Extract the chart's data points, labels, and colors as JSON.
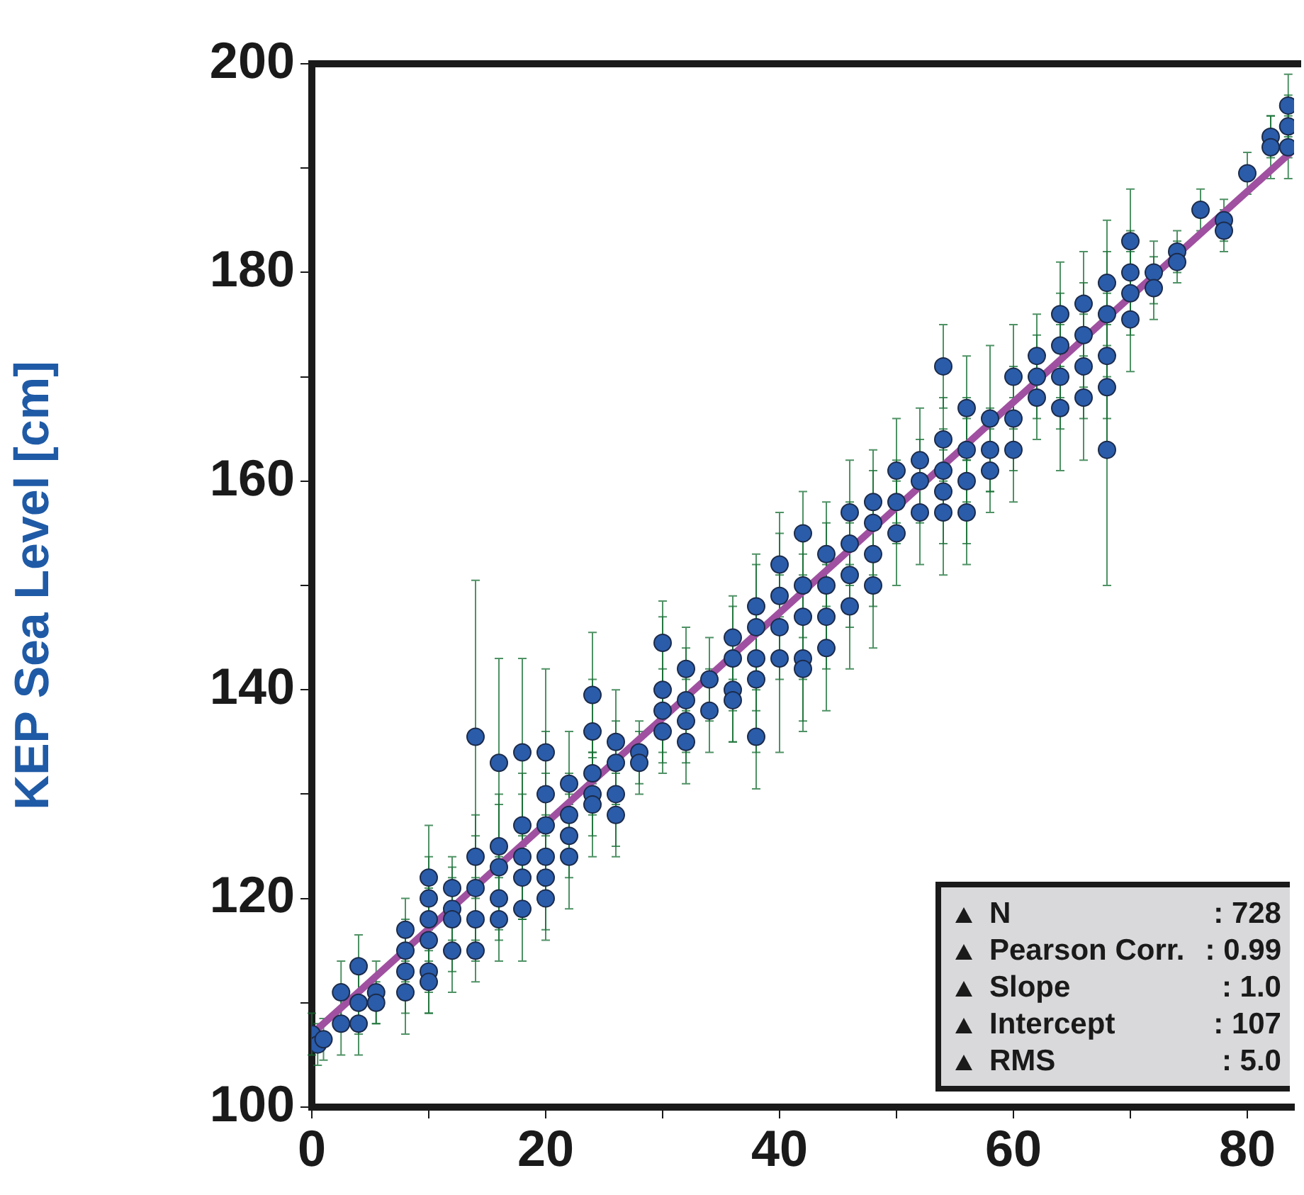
{
  "chart_data": {
    "type": "scatter",
    "ylabel": "KEP Sea Level [cm]",
    "xlim": [
      0,
      84
    ],
    "ylim": [
      100,
      200
    ],
    "xticks": [
      0,
      {
        "value": 10,
        "label": null
      },
      20,
      {
        "value": 30,
        "label": null
      },
      40,
      {
        "value": 50,
        "label": null
      },
      60,
      {
        "value": 70,
        "label": null
      },
      80
    ],
    "yticks": [
      100,
      {
        "value": 110,
        "label": null
      },
      120,
      {
        "value": 130,
        "label": null
      },
      140,
      {
        "value": 150,
        "label": null
      },
      160,
      {
        "value": 170,
        "label": null
      },
      180,
      {
        "value": 190,
        "label": null
      },
      200
    ],
    "grid": false,
    "legend": false,
    "marker": "circle",
    "annotations": [
      "N : 728",
      "Pearson Corr. : 0.99",
      "Slope : 1.0",
      "Intercept : 107",
      "RMS : 5.0"
    ],
    "series": [
      {
        "type": "line",
        "marker": "none",
        "color": "#a050a0",
        "x": [
          0,
          84
        ],
        "values": [
          107,
          191.8
        ]
      },
      {
        "color": "#2a5caa",
        "x": [
          0,
          0.5,
          1,
          2.5,
          2.5,
          4,
          4,
          4,
          5.5,
          5.5,
          8,
          8,
          8,
          8,
          10,
          10,
          10,
          10,
          10,
          10,
          12,
          12,
          12,
          12,
          14,
          14,
          14,
          14,
          14,
          16,
          16,
          16,
          16,
          16,
          18,
          18,
          18,
          18,
          18,
          20,
          20,
          20,
          20,
          20,
          20,
          22,
          22,
          22,
          22,
          24,
          24,
          24,
          24,
          24,
          26,
          26,
          26,
          26,
          28,
          28,
          30,
          30,
          30,
          30,
          32,
          32,
          32,
          32,
          34,
          34,
          36,
          36,
          36,
          36,
          38,
          38,
          38,
          38,
          38,
          40,
          40,
          40,
          40,
          42,
          42,
          42,
          42,
          42,
          44,
          44,
          44,
          44,
          46,
          46,
          46,
          46,
          48,
          48,
          48,
          48,
          50,
          50,
          50,
          52,
          52,
          52,
          54,
          54,
          54,
          54,
          54,
          56,
          56,
          56,
          56,
          58,
          58,
          58,
          60,
          60,
          60,
          62,
          62,
          62,
          64,
          64,
          64,
          64,
          66,
          66,
          66,
          66,
          68,
          68,
          68,
          68,
          68,
          70,
          70,
          70,
          70,
          72,
          72,
          74,
          74,
          76,
          78,
          78,
          80,
          82,
          82,
          83.5,
          83.5,
          83.5
        ],
        "values": [
          107,
          106,
          106.5,
          111,
          108,
          108,
          110,
          113.5,
          111,
          110,
          117,
          115,
          113,
          111,
          122,
          120,
          118,
          116,
          113,
          112,
          121,
          119,
          115,
          118,
          135.5,
          124,
          121,
          118,
          115,
          133,
          125,
          123,
          120,
          118,
          134,
          127,
          124,
          122,
          119,
          134,
          130,
          127,
          124,
          122,
          120,
          131,
          128,
          126,
          124,
          139.5,
          136,
          132,
          130,
          129,
          135,
          133,
          130,
          128,
          134,
          133,
          144.5,
          140,
          138,
          136,
          142,
          139,
          137,
          135,
          141,
          138,
          145,
          143,
          140,
          139,
          148,
          146,
          143,
          135.5,
          141,
          152,
          149,
          146,
          143,
          155,
          150,
          147,
          143,
          142,
          153,
          150,
          147,
          144,
          157,
          154,
          151,
          148,
          158,
          156,
          153,
          150,
          161,
          158,
          155,
          162,
          160,
          157,
          171,
          164,
          161,
          159,
          157,
          167,
          163,
          160,
          157,
          166,
          163,
          161,
          170,
          166,
          163,
          172,
          170,
          168,
          176,
          173,
          170,
          167,
          177,
          174,
          171,
          168,
          179,
          176,
          172,
          169,
          163,
          183,
          180,
          178,
          175.5,
          180,
          178.5,
          182,
          181,
          186,
          185,
          184,
          189.5,
          193,
          192,
          194,
          192,
          196
        ],
        "errors": [
          2,
          2,
          2,
          3,
          3,
          3,
          3,
          3,
          3,
          2,
          3,
          3,
          4,
          4,
          5,
          4,
          4,
          5,
          4,
          3,
          3,
          3,
          4,
          5,
          15,
          4,
          5,
          4,
          3,
          10,
          5,
          6,
          4,
          4,
          9,
          5,
          6,
          4,
          5,
          8,
          6,
          5,
          4,
          5,
          4,
          5,
          4,
          4,
          5,
          6,
          5,
          4,
          4,
          5,
          5,
          4,
          5,
          4,
          3,
          3,
          4,
          7,
          4,
          4,
          4,
          5,
          4,
          4,
          4,
          4,
          4,
          5,
          5,
          4,
          5,
          6,
          5,
          5,
          7,
          5,
          6,
          5,
          9,
          4,
          5,
          6,
          7,
          5,
          5,
          6,
          5,
          6,
          5,
          4,
          5,
          6,
          5,
          5,
          5,
          6,
          5,
          4,
          5,
          5,
          4,
          5,
          4,
          4,
          4,
          5,
          6,
          5,
          5,
          6,
          5,
          7,
          4,
          4,
          5,
          5,
          5,
          4,
          4,
          4,
          5,
          5,
          5,
          6,
          5,
          5,
          5,
          6,
          6,
          6,
          6,
          6,
          13,
          5,
          4,
          4,
          5,
          3,
          3,
          2,
          2,
          2,
          2,
          2,
          2,
          2,
          3,
          3,
          3,
          3
        ]
      }
    ]
  }
}
